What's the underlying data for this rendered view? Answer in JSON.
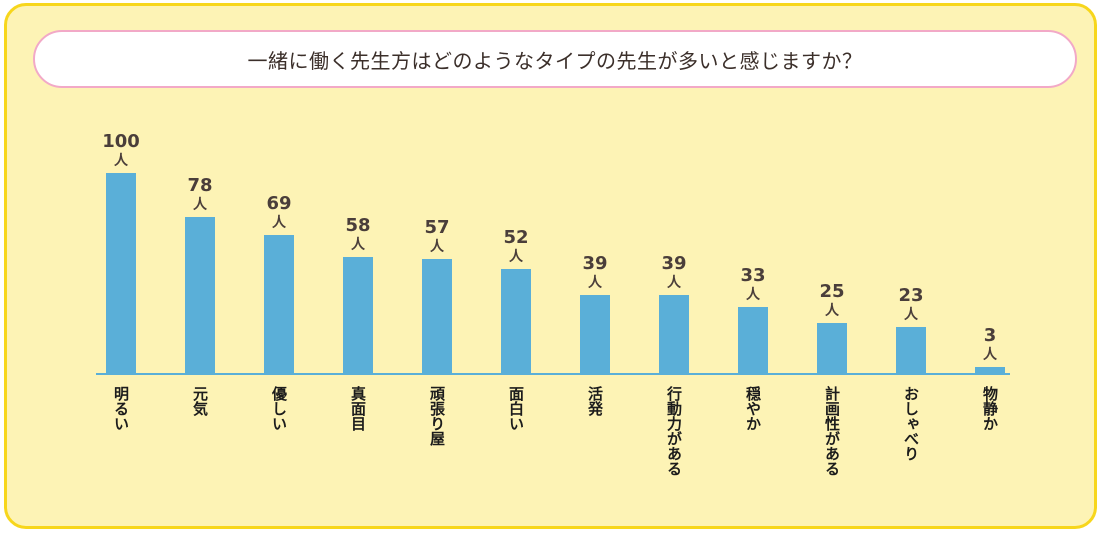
{
  "title": "一緒に働く先生方はどのようなタイプの先生が多いと感じますか？",
  "colors": {
    "background": "#fdf3b5",
    "border": "#f7d61c",
    "pill_border": "#f2a9c7",
    "bar": "#5aafd8",
    "baseline": "#5aafd8"
  },
  "chart_data": {
    "type": "bar",
    "title": "一緒に働く先生方はどのようなタイプの先生が多いと感じますか？",
    "unit": "人",
    "categories": [
      "明るい",
      "元気",
      "優しい",
      "真面目",
      "頑張り屋",
      "面白い",
      "活発",
      "行動力がある",
      "穏やか",
      "計画性がある",
      "おしゃべり",
      "物静か"
    ],
    "values": [
      100,
      78,
      69,
      58,
      57,
      52,
      39,
      39,
      33,
      25,
      23,
      3
    ],
    "ylim": [
      0,
      100
    ],
    "grid": false,
    "legend": "none"
  }
}
